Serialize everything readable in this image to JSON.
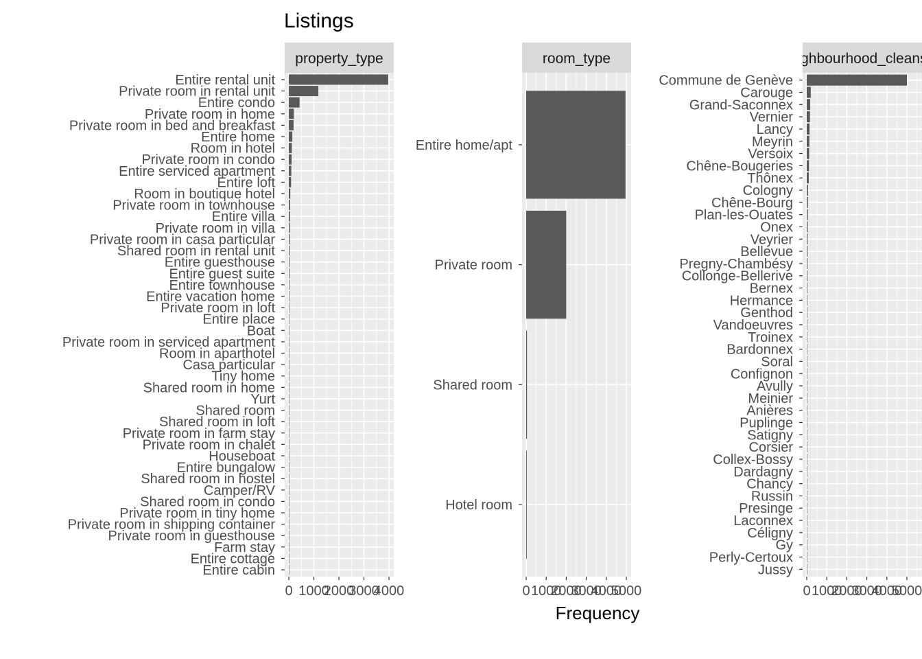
{
  "chart_data": {
    "type": "bar",
    "orientation": "horizontal",
    "title": "Listings",
    "xlabel": "Frequency",
    "colors": {
      "bar": "#595959",
      "panel_background": "#ebebeb",
      "grid": "#ffffff",
      "strip_background": "#d9d9d9",
      "strip_text": "#1a1a1a",
      "tick_text": "#4d4d4d"
    },
    "facets": [
      {
        "name": "property_type",
        "strip_label": "property_type",
        "xlim": [
          0,
          4100
        ],
        "x_ticks": [
          0,
          1000,
          2000,
          3000,
          4000
        ],
        "categories": [
          "Entire rental unit",
          "Private room in rental unit",
          "Entire condo",
          "Private room in home",
          "Private room in bed and breakfast",
          "Entire home",
          "Room in hotel",
          "Private room in condo",
          "Entire serviced apartment",
          "Entire loft",
          "Room in boutique hotel",
          "Private room in townhouse",
          "Entire villa",
          "Private room in villa",
          "Private room in casa particular",
          "Shared room in rental unit",
          "Entire guesthouse",
          "Entire guest suite",
          "Entire townhouse",
          "Entire vacation home",
          "Private room in loft",
          "Entire place",
          "Boat",
          "Private room in serviced apartment",
          "Room in aparthotel",
          "Casa particular",
          "Tiny home",
          "Shared room in home",
          "Yurt",
          "Shared room",
          "Shared room in loft",
          "Private room in farm stay",
          "Private room in chalet",
          "Houseboat",
          "Entire bungalow",
          "Shared room in hostel",
          "Camper/RV",
          "Shared room in condo",
          "Private room in tiny home",
          "Private room in shipping container",
          "Private room in guesthouse",
          "Farm stay",
          "Entire cottage",
          "Entire cabin"
        ],
        "values": [
          3970,
          1180,
          430,
          200,
          190,
          140,
          120,
          110,
          100,
          90,
          60,
          50,
          45,
          40,
          35,
          30,
          25,
          25,
          22,
          20,
          18,
          10,
          8,
          8,
          7,
          6,
          5,
          5,
          4,
          4,
          3,
          3,
          3,
          2,
          2,
          2,
          2,
          2,
          1,
          1,
          1,
          1,
          1,
          1
        ]
      },
      {
        "name": "room_type",
        "strip_label": "room_type",
        "xlim": [
          0,
          5100
        ],
        "x_ticks": [
          0,
          1000,
          2000,
          3000,
          4000,
          5000
        ],
        "categories": [
          "Entire home/apt",
          "Private room",
          "Shared room",
          "Hotel room"
        ],
        "values": [
          4960,
          2000,
          40,
          30
        ]
      },
      {
        "name": "neighbourhood_cleansed",
        "strip_label": "neighbourhood_cleansed",
        "xlim": [
          0,
          5100
        ],
        "x_ticks": [
          0,
          1000,
          2000,
          3000,
          4000,
          5000
        ],
        "categories": [
          "Commune de Genève",
          "Carouge",
          "Grand-Saconnex",
          "Vernier",
          "Lancy",
          "Meyrin",
          "Versoix",
          "Chêne-Bougeries",
          "Thônex",
          "Cologny",
          "Chêne-Bourg",
          "Plan-les-Ouates",
          "Onex",
          "Veyrier",
          "Bellevue",
          "Pregny-Chambésy",
          "Collonge-Bellerive",
          "Bernex",
          "Hermance",
          "Genthod",
          "Vandoeuvres",
          "Troinex",
          "Bardonnex",
          "Soral",
          "Confignon",
          "Avully",
          "Meinier",
          "Anières",
          "Puplinge",
          "Satigny",
          "Corsier",
          "Collex-Bossy",
          "Dardagny",
          "Chancy",
          "Russin",
          "Presinge",
          "Laconnex",
          "Céligny",
          "Gy",
          "Perly-Certoux",
          "Jussy"
        ],
        "values": [
          5000,
          200,
          170,
          160,
          140,
          130,
          120,
          110,
          100,
          60,
          55,
          50,
          45,
          40,
          38,
          35,
          32,
          28,
          26,
          24,
          20,
          18,
          16,
          14,
          12,
          12,
          10,
          10,
          9,
          9,
          8,
          8,
          7,
          6,
          6,
          5,
          5,
          4,
          4,
          3,
          3
        ]
      }
    ]
  }
}
